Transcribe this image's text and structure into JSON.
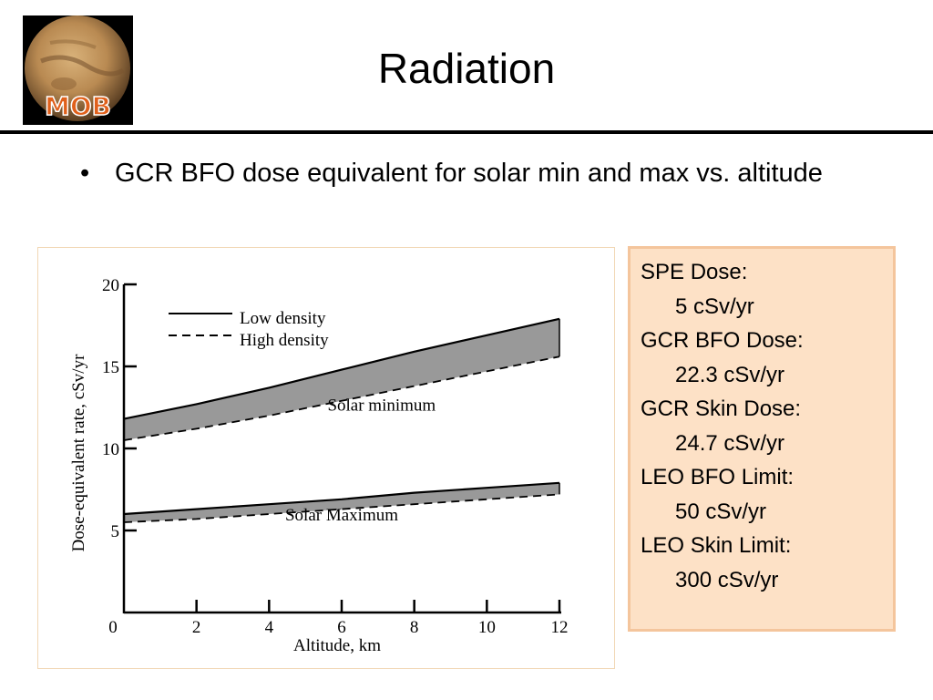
{
  "slide": {
    "title": "Radiation",
    "logo_text": "MOB",
    "bullet": "GCR BFO dose equivalent for solar min and max vs. altitude",
    "colors": {
      "rule": "#000000",
      "box_fill": "#fde1c6",
      "box_border": "#f4c59c",
      "band_fill": "#999999",
      "logo_text": "#e0601b"
    }
  },
  "info_box": {
    "items": [
      {
        "label": "SPE Dose:",
        "value": "5 cSv/yr"
      },
      {
        "label": "GCR BFO Dose:",
        "value": "22.3 cSv/yr"
      },
      {
        "label": "GCR Skin Dose:",
        "value": "24.7 cSv/yr"
      },
      {
        "label": "LEO BFO Limit:",
        "value": "50 cSv/yr"
      },
      {
        "label": "LEO Skin Limit:",
        "value": "300 cSv/yr"
      }
    ]
  },
  "chart_data": {
    "type": "area",
    "title": "",
    "xlabel": "Altitude, km",
    "ylabel": "Dose-equivalent rate, cSv/yr",
    "xlim": [
      0,
      12
    ],
    "ylim": [
      0,
      20
    ],
    "x_ticks": [
      0,
      2,
      4,
      6,
      8,
      10,
      12
    ],
    "y_ticks": [
      5,
      10,
      15,
      20
    ],
    "grid": false,
    "legend": {
      "placement": "top-left",
      "entries": [
        {
          "label": "Low density",
          "style": "solid"
        },
        {
          "label": "High density",
          "style": "dashed"
        }
      ]
    },
    "x": [
      0,
      2,
      4,
      6,
      8,
      10,
      12
    ],
    "series": [
      {
        "name": "Solar minimum",
        "density": "Low density",
        "values": [
          11.8,
          12.7,
          13.7,
          14.8,
          15.9,
          16.9,
          17.9
        ]
      },
      {
        "name": "Solar minimum",
        "density": "High density",
        "values": [
          10.5,
          11.2,
          12.0,
          12.9,
          13.8,
          14.7,
          15.6
        ]
      },
      {
        "name": "Solar Maximum",
        "density": "Low density",
        "values": [
          6.0,
          6.3,
          6.6,
          6.9,
          7.3,
          7.6,
          7.9
        ]
      },
      {
        "name": "Solar Maximum",
        "density": "High density",
        "values": [
          5.5,
          5.7,
          6.0,
          6.3,
          6.6,
          6.9,
          7.2
        ]
      }
    ],
    "annotations": [
      {
        "text": "Solar minimum",
        "x": 7.1,
        "y": 12.3
      },
      {
        "text": "Solar Maximum",
        "x": 6.0,
        "y": 5.6
      }
    ]
  }
}
